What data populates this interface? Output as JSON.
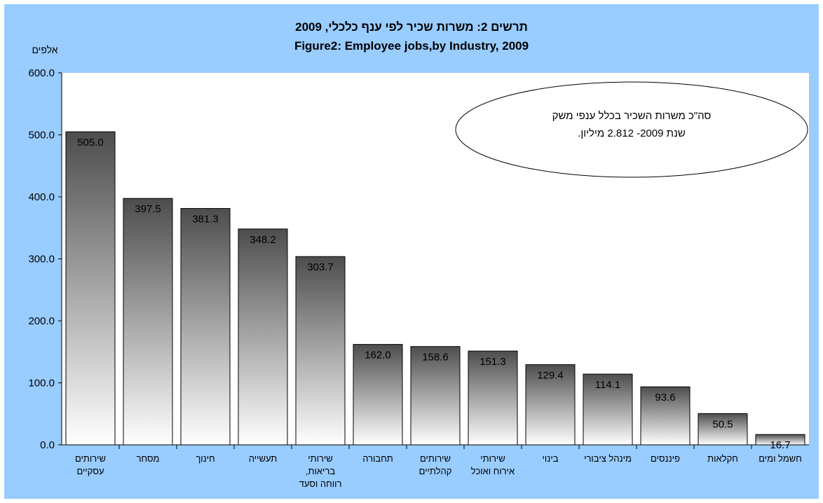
{
  "chart_data": {
    "type": "bar",
    "title": "תרשים 2:  משרות שכיר לפי ענף כלכלי, 2009",
    "subtitle": "Figure2: Employee jobs,by Industry,  2009",
    "ylabel": "אלפים",
    "ylim": [
      0,
      600
    ],
    "yticks": [
      "600.0",
      "500.0",
      "400.0",
      "300.0",
      "200.0",
      "100.0",
      "0.0"
    ],
    "grid": false,
    "categories": [
      [
        "שירותים",
        "עסקיים"
      ],
      [
        "מסחר"
      ],
      [
        "חינוך"
      ],
      [
        "תעשייה"
      ],
      [
        "שירותי",
        "בריאות,",
        "רווחה וסעד"
      ],
      [
        "תחבורה"
      ],
      [
        "שירותים",
        "קהלתיים"
      ],
      [
        "שירותי",
        "אירוח ואוכל"
      ],
      [
        "בינוי"
      ],
      [
        "מינהל ציבורי"
      ],
      [
        "פיננסים"
      ],
      [
        "חקלאות"
      ],
      [
        "חשמל ומים"
      ]
    ],
    "values": [
      505.0,
      397.5,
      381.3,
      348.2,
      303.7,
      162.0,
      158.6,
      151.3,
      129.4,
      114.1,
      93.6,
      50.5,
      16.7
    ],
    "value_labels": [
      "505.0",
      "397.5",
      "381.3",
      "348.2",
      "303.7",
      "162.0",
      "158.6",
      "151.3",
      "129.4",
      "114.1",
      "93.6",
      "50.5",
      "16.7"
    ],
    "annotation": {
      "lines": [
        "סה\"כ משרות השכיר בכלל ענפי משק",
        "שנת 2009-  2.812 מיליון."
      ]
    }
  },
  "colors": {
    "background": "#99ccff",
    "plot_area": "#ffffff",
    "bar_top": "#4d4d4d",
    "bar_bottom": "#ffffff"
  }
}
